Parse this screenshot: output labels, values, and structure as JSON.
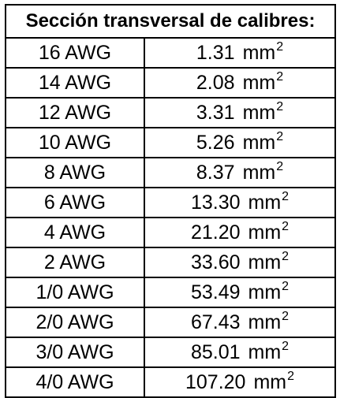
{
  "title": "Sección transversal de calibres:",
  "unit": "mm",
  "unit_power": "2",
  "rows": [
    {
      "gauge": "16 AWG",
      "area": "1.31"
    },
    {
      "gauge": "14 AWG",
      "area": "2.08"
    },
    {
      "gauge": "12 AWG",
      "area": "3.31"
    },
    {
      "gauge": "10 AWG",
      "area": "5.26"
    },
    {
      "gauge": "8 AWG",
      "area": "8.37"
    },
    {
      "gauge": "6 AWG",
      "area": "13.30"
    },
    {
      "gauge": "4 AWG",
      "area": "21.20"
    },
    {
      "gauge": "2 AWG",
      "area": "33.60"
    },
    {
      "gauge": "1/0 AWG",
      "area": "53.49"
    },
    {
      "gauge": "2/0 AWG",
      "area": "67.43"
    },
    {
      "gauge": "3/0 AWG",
      "area": "85.01"
    },
    {
      "gauge": "4/0 AWG",
      "area": "107.20"
    }
  ]
}
